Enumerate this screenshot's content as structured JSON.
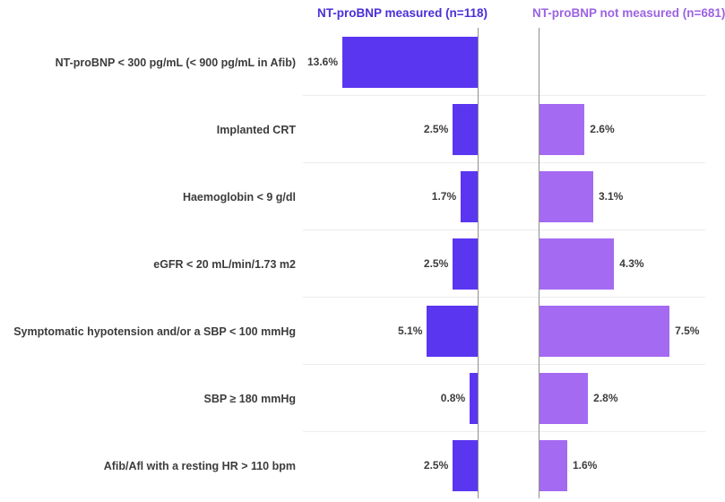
{
  "chart_data": {
    "type": "bar",
    "orientation": "horizontal",
    "layout": "two mirrored panels sharing category labels; left panel bars grow leftward from its axis, right panel bars grow rightward",
    "categories": [
      "NT-proBNP < 300 pg/mL (< 900 pg/mL in Afib)",
      "Implanted CRT",
      "Haemoglobin < 9 g/dl",
      "eGFR < 20 mL/min/1.73 m2",
      "Symptomatic hypotension and/or a SBP < 100 mmHg",
      "SBP ≥ 180 mmHg",
      "Afib/Afl with a resting HR > 110 bpm"
    ],
    "series": [
      {
        "name": "NT-proBNP measured (n=118)",
        "panel": "left",
        "color": "#5a36f0",
        "title_color": "#4a2fd9",
        "values": [
          13.6,
          2.5,
          1.7,
          2.5,
          5.1,
          0.8,
          2.5
        ],
        "labels": [
          "13.6%",
          "2.5%",
          "1.7%",
          "2.5%",
          "5.1%",
          "0.8%",
          "2.5%"
        ]
      },
      {
        "name": "NT-proBNP not measured (n=681)",
        "panel": "right",
        "color": "#a46af2",
        "title_color": "#9c63e3",
        "values": [
          null,
          2.6,
          3.1,
          4.3,
          7.5,
          2.8,
          1.6
        ],
        "labels": [
          null,
          "2.6%",
          "3.1%",
          "4.3%",
          "7.5%",
          "2.8%",
          "1.6%"
        ]
      }
    ],
    "value_suffix": "%",
    "grid": true,
    "xlim_left_panel": [
      0,
      17.4
    ],
    "xlim_right_panel": [
      0,
      9.6
    ],
    "legend_position": "panel titles on top"
  },
  "colors": {
    "text": "#3c3c3c",
    "axis": "#8f8f8f",
    "grid": "#ececec",
    "background": "#ffffff"
  }
}
